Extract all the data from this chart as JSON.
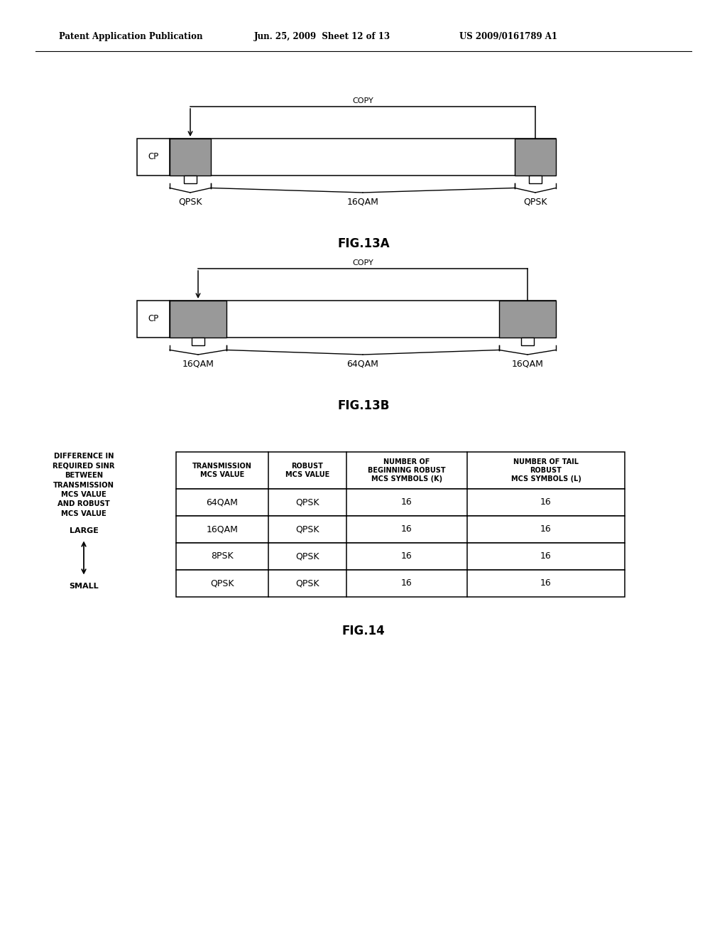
{
  "header_left": "Patent Application Publication",
  "header_mid": "Jun. 25, 2009  Sheet 12 of 13",
  "header_right": "US 2009/0161789 A1",
  "fig13a_label": "FIG.13A",
  "fig13b_label": "FIG.13B",
  "fig14_label": "FIG.14",
  "copy_label": "COPY",
  "cp_label": "CP",
  "fig13a_labels": [
    "QPSK",
    "16QAM",
    "QPSK"
  ],
  "fig13b_labels": [
    "16QAM",
    "64QAM",
    "16QAM"
  ],
  "table_side_label": [
    "DIFFERENCE IN",
    "REQUIRED SINR",
    "BETWEEN",
    "TRANSMISSION",
    "MCS VALUE",
    "AND ROBUST",
    "MCS VALUE"
  ],
  "large_label": "LARGE",
  "small_label": "SMALL",
  "table_headers": [
    "TRANSMISSION\nMCS VALUE",
    "ROBUST\nMCS VALUE",
    "NUMBER OF\nBEGINNING ROBUST\nMCS SYMBOLS (K)",
    "NUMBER OF TAIL\nROBUST\nMCS SYMBOLS (L)"
  ],
  "table_rows": [
    [
      "64QAM",
      "QPSK",
      "16",
      "16"
    ],
    [
      "16QAM",
      "QPSK",
      "16",
      "16"
    ],
    [
      "8PSK",
      "QPSK",
      "16",
      "16"
    ],
    [
      "QPSK",
      "QPSK",
      "16",
      "16"
    ]
  ],
  "bg_color": "#ffffff",
  "line_color": "#000000",
  "gray_color": "#999999",
  "font_size_header": 9,
  "font_size_body": 9,
  "font_size_fig": 11
}
